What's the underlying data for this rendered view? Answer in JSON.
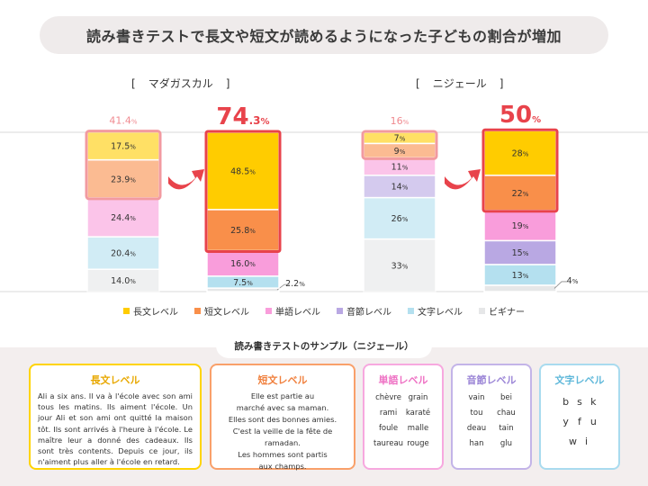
{
  "title": "読み書きテストで長文や短文が読めるようになった子どもの割合が増加",
  "colors": {
    "long": "#ffcc00",
    "short": "#f98f4a",
    "word": "#f99ddb",
    "sound": "#b9a8e3",
    "letter": "#b4e0ef",
    "beginner": "#e6e7e8",
    "highlight": "#e8434b"
  },
  "chart_data": [
    {
      "type": "bar",
      "region": "マダガスカル",
      "stacked": true,
      "units": "%",
      "bars": [
        {
          "total_label": "41.4",
          "segments": [
            {
              "level": "beginner",
              "value": 14.0,
              "label": "14.0"
            },
            {
              "level": "letter",
              "value": 20.4,
              "label": "20.4"
            },
            {
              "level": "word",
              "value": 24.4,
              "label": "24.4"
            },
            {
              "level": "short",
              "value": 23.9,
              "label": "23.9"
            },
            {
              "level": "long",
              "value": 17.5,
              "label": "17.5"
            }
          ]
        },
        {
          "total_label": "74",
          "total_decimal": ".3",
          "segments": [
            {
              "level": "beginner",
              "value": 2.2,
              "label": "2.2"
            },
            {
              "level": "letter",
              "value": 7.5,
              "label": "7.5"
            },
            {
              "level": "word",
              "value": 16.0,
              "label": "16.0"
            },
            {
              "level": "short",
              "value": 25.8,
              "label": "25.8"
            },
            {
              "level": "long",
              "value": 48.5,
              "label": "48.5"
            }
          ]
        }
      ]
    },
    {
      "type": "bar",
      "region": "ニジェール",
      "stacked": true,
      "units": "%",
      "bars": [
        {
          "total_label": "16",
          "segments": [
            {
              "level": "beginner",
              "value": 33,
              "label": "33"
            },
            {
              "level": "letter",
              "value": 26,
              "label": "26"
            },
            {
              "level": "sound",
              "value": 14,
              "label": "14"
            },
            {
              "level": "word",
              "value": 11,
              "label": "11"
            },
            {
              "level": "short",
              "value": 9,
              "label": "9"
            },
            {
              "level": "long",
              "value": 7,
              "label": "7"
            }
          ]
        },
        {
          "total_label": "50",
          "total_decimal": "",
          "segments": [
            {
              "level": "beginner",
              "value": 4,
              "label": "4"
            },
            {
              "level": "letter",
              "value": 13,
              "label": "13"
            },
            {
              "level": "sound",
              "value": 15,
              "label": "15"
            },
            {
              "level": "word",
              "value": 19,
              "label": "19"
            },
            {
              "level": "short",
              "value": 22,
              "label": "22"
            },
            {
              "level": "long",
              "value": 28,
              "label": "28"
            }
          ]
        }
      ]
    }
  ],
  "legend": [
    {
      "level": "long",
      "label": "長文レベル"
    },
    {
      "level": "short",
      "label": "短文レベル"
    },
    {
      "level": "word",
      "label": "単語レベル"
    },
    {
      "level": "sound",
      "label": "音節レベル"
    },
    {
      "level": "letter",
      "label": "文字レベル"
    },
    {
      "level": "beginner",
      "label": "ビギナー"
    }
  ],
  "samples": {
    "title": "読み書きテストのサンプル（ニジェール）",
    "long": {
      "title": "長文レベル",
      "text": "Ali a six ans. Il va à l'école avec son ami tous les matins. Ils aiment l'école. Un jour Ali et son ami ont quitté la maison tôt. Ils sont arrivés à l'heure à l'école. Le maître leur a donné des cadeaux. Ils sont très contents. Depuis ce jour, ils n'aiment plus aller à l'école en retard."
    },
    "short": {
      "title": "短文レベル",
      "lines": [
        "Elle est partie au",
        "marché avec sa maman.",
        "Elles sont des bonnes amies.",
        "C'est la veille de la fête de ramadan.",
        "Les hommes sont partis",
        "aux champs."
      ]
    },
    "word": {
      "title": "単語レベル",
      "words": [
        "chèvre",
        "grain",
        "rami",
        "karaté",
        "foule",
        "malle",
        "taureau",
        "rouge"
      ]
    },
    "sound": {
      "title": "音節レベル",
      "syllables": [
        "vain",
        "bei",
        "tou",
        "chau",
        "deau",
        "tain",
        "han",
        "glu"
      ]
    },
    "letter": {
      "title": "文字レベル",
      "letters": [
        "b",
        "s",
        "k",
        "y",
        "f",
        "u",
        "w",
        "i"
      ]
    }
  }
}
